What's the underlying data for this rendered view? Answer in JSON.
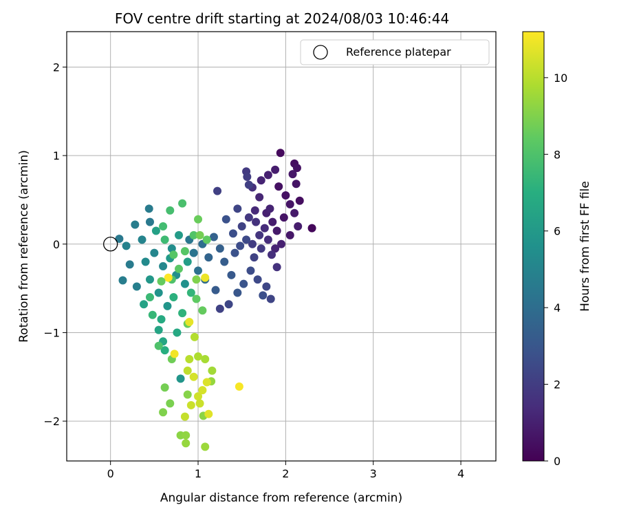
{
  "chart_data": {
    "type": "scatter",
    "title": "FOV centre drift starting at 2024/08/03 10:46:44",
    "xlabel": "Angular distance from reference (arcmin)",
    "ylabel": "Rotation from reference (arcmin)",
    "xlim": [
      -0.5,
      4.4
    ],
    "ylim": [
      -2.45,
      2.4
    ],
    "xticks": [
      0,
      1,
      2,
      3,
      4
    ],
    "yticks": [
      -2,
      -1,
      0,
      1,
      2
    ],
    "xtick_labels": [
      "0",
      "1",
      "2",
      "3",
      "4"
    ],
    "ytick_labels": [
      "−2",
      "−1",
      "0",
      "1",
      "2"
    ],
    "grid": true,
    "legend": {
      "position": "top-right",
      "entries": [
        {
          "label": "Reference platepar",
          "marker": "open-circle"
        }
      ]
    },
    "reference_point": {
      "x": 0,
      "y": 0
    },
    "colorbar": {
      "label": "Hours from first FF file",
      "range": [
        0,
        11.2
      ],
      "ticks": [
        0,
        2,
        4,
        6,
        8,
        10
      ],
      "tick_labels": [
        "0",
        "2",
        "4",
        "6",
        "8",
        "10"
      ],
      "colormap": "viridis"
    },
    "points": [
      {
        "x": 2.3,
        "y": 0.18,
        "c": 0.2
      },
      {
        "x": 1.94,
        "y": 1.03,
        "c": 0.3
      },
      {
        "x": 2.1,
        "y": 0.91,
        "c": 0.4
      },
      {
        "x": 2.13,
        "y": 0.86,
        "c": 0.5
      },
      {
        "x": 2.16,
        "y": 0.49,
        "c": 0.4
      },
      {
        "x": 2.12,
        "y": 0.68,
        "c": 0.6
      },
      {
        "x": 2.08,
        "y": 0.79,
        "c": 0.7
      },
      {
        "x": 2.0,
        "y": 0.55,
        "c": 0.5
      },
      {
        "x": 2.05,
        "y": 0.45,
        "c": 0.6
      },
      {
        "x": 2.1,
        "y": 0.35,
        "c": 0.8
      },
      {
        "x": 2.14,
        "y": 0.2,
        "c": 0.9
      },
      {
        "x": 2.05,
        "y": 0.1,
        "c": 0.7
      },
      {
        "x": 1.98,
        "y": 0.3,
        "c": 0.6
      },
      {
        "x": 1.9,
        "y": 0.15,
        "c": 0.8
      },
      {
        "x": 1.95,
        "y": 0.0,
        "c": 1.0
      },
      {
        "x": 1.88,
        "y": -0.05,
        "c": 1.1
      },
      {
        "x": 1.92,
        "y": 0.65,
        "c": 0.5
      },
      {
        "x": 1.88,
        "y": 0.84,
        "c": 0.9
      },
      {
        "x": 1.8,
        "y": 0.78,
        "c": 1.0
      },
      {
        "x": 1.72,
        "y": 0.72,
        "c": 1.1
      },
      {
        "x": 1.7,
        "y": 0.53,
        "c": 1.2
      },
      {
        "x": 1.62,
        "y": 0.64,
        "c": 1.5
      },
      {
        "x": 1.78,
        "y": 0.35,
        "c": 1.0
      },
      {
        "x": 1.85,
        "y": 0.25,
        "c": 0.9
      },
      {
        "x": 1.82,
        "y": 0.4,
        "c": 1.1
      },
      {
        "x": 1.65,
        "y": 0.38,
        "c": 1.3
      },
      {
        "x": 1.76,
        "y": 0.18,
        "c": 1.4
      },
      {
        "x": 1.9,
        "y": -0.26,
        "c": 1.6
      },
      {
        "x": 1.84,
        "y": -0.12,
        "c": 1.5
      },
      {
        "x": 1.8,
        "y": 0.05,
        "c": 1.4
      },
      {
        "x": 1.7,
        "y": 0.1,
        "c": 1.7
      },
      {
        "x": 1.66,
        "y": 0.25,
        "c": 1.6
      },
      {
        "x": 1.58,
        "y": 0.3,
        "c": 1.8
      },
      {
        "x": 1.55,
        "y": 0.82,
        "c": 1.9
      },
      {
        "x": 1.56,
        "y": 0.76,
        "c": 2.0
      },
      {
        "x": 1.58,
        "y": 0.67,
        "c": 2.1
      },
      {
        "x": 1.22,
        "y": 0.6,
        "c": 2.1
      },
      {
        "x": 1.45,
        "y": 0.4,
        "c": 2.3
      },
      {
        "x": 1.5,
        "y": 0.2,
        "c": 2.2
      },
      {
        "x": 1.62,
        "y": 0.0,
        "c": 2.0
      },
      {
        "x": 1.72,
        "y": -0.05,
        "c": 1.9
      },
      {
        "x": 1.64,
        "y": -0.15,
        "c": 2.2
      },
      {
        "x": 1.55,
        "y": 0.05,
        "c": 2.5
      },
      {
        "x": 1.48,
        "y": -0.02,
        "c": 2.6
      },
      {
        "x": 1.4,
        "y": 0.12,
        "c": 2.7
      },
      {
        "x": 1.32,
        "y": 0.28,
        "c": 2.8
      },
      {
        "x": 1.42,
        "y": -0.1,
        "c": 2.8
      },
      {
        "x": 1.6,
        "y": -0.3,
        "c": 2.6
      },
      {
        "x": 1.68,
        "y": -0.4,
        "c": 2.5
      },
      {
        "x": 1.78,
        "y": -0.48,
        "c": 2.4
      },
      {
        "x": 1.74,
        "y": -0.58,
        "c": 2.7
      },
      {
        "x": 1.83,
        "y": -0.62,
        "c": 2.3
      },
      {
        "x": 1.52,
        "y": -0.45,
        "c": 2.9
      },
      {
        "x": 1.45,
        "y": -0.55,
        "c": 3.0
      },
      {
        "x": 1.35,
        "y": -0.68,
        "c": 2.4
      },
      {
        "x": 1.25,
        "y": -0.73,
        "c": 2.2
      },
      {
        "x": 1.38,
        "y": -0.35,
        "c": 3.1
      },
      {
        "x": 1.3,
        "y": -0.2,
        "c": 3.3
      },
      {
        "x": 1.25,
        "y": -0.05,
        "c": 3.4
      },
      {
        "x": 1.18,
        "y": 0.08,
        "c": 3.5
      },
      {
        "x": 1.12,
        "y": -0.15,
        "c": 3.6
      },
      {
        "x": 1.2,
        "y": -0.52,
        "c": 3.2
      },
      {
        "x": 1.08,
        "y": -0.4,
        "c": 3.9
      },
      {
        "x": 1.0,
        "y": -0.3,
        "c": 4.1
      },
      {
        "x": 0.95,
        "y": -0.1,
        "c": 4.3
      },
      {
        "x": 0.9,
        "y": 0.05,
        "c": 4.4
      },
      {
        "x": 1.05,
        "y": 0.0,
        "c": 4.0
      },
      {
        "x": 0.22,
        "y": -0.23,
        "c": 4.6
      },
      {
        "x": 0.1,
        "y": 0.06,
        "c": 4.5
      },
      {
        "x": 0.14,
        "y": -0.41,
        "c": 4.7
      },
      {
        "x": 0.3,
        "y": -0.48,
        "c": 4.8
      },
      {
        "x": 0.44,
        "y": 0.4,
        "c": 4.6
      },
      {
        "x": 0.45,
        "y": 0.25,
        "c": 4.5
      },
      {
        "x": 0.28,
        "y": 0.22,
        "c": 4.7
      },
      {
        "x": 0.18,
        "y": -0.02,
        "c": 4.9
      },
      {
        "x": 0.36,
        "y": 0.05,
        "c": 5.0
      },
      {
        "x": 0.5,
        "y": -0.1,
        "c": 5.1
      },
      {
        "x": 0.6,
        "y": -0.25,
        "c": 5.2
      },
      {
        "x": 0.4,
        "y": -0.2,
        "c": 5.3
      },
      {
        "x": 0.7,
        "y": -0.05,
        "c": 5.4
      },
      {
        "x": 0.75,
        "y": -0.35,
        "c": 5.5
      },
      {
        "x": 0.85,
        "y": -0.45,
        "c": 5.6
      },
      {
        "x": 0.55,
        "y": -0.55,
        "c": 5.7
      },
      {
        "x": 0.65,
        "y": -0.7,
        "c": 5.8
      },
      {
        "x": 0.45,
        "y": -0.4,
        "c": 5.9
      },
      {
        "x": 0.68,
        "y": -0.16,
        "c": 6.0
      },
      {
        "x": 0.78,
        "y": 0.1,
        "c": 6.1
      },
      {
        "x": 0.88,
        "y": -0.2,
        "c": 6.2
      },
      {
        "x": 0.52,
        "y": 0.15,
        "c": 6.3
      },
      {
        "x": 0.38,
        "y": -0.68,
        "c": 6.4
      },
      {
        "x": 0.55,
        "y": -0.97,
        "c": 6.5
      },
      {
        "x": 0.6,
        "y": -1.1,
        "c": 6.6
      },
      {
        "x": 0.76,
        "y": -1.0,
        "c": 6.7
      },
      {
        "x": 0.58,
        "y": -0.85,
        "c": 6.8
      },
      {
        "x": 0.8,
        "y": -1.52,
        "c": 5.8
      },
      {
        "x": 0.62,
        "y": -1.2,
        "c": 7.0
      },
      {
        "x": 0.72,
        "y": -0.6,
        "c": 7.1
      },
      {
        "x": 0.82,
        "y": -0.78,
        "c": 7.2
      },
      {
        "x": 0.92,
        "y": -0.55,
        "c": 7.3
      },
      {
        "x": 0.48,
        "y": -0.8,
        "c": 7.4
      },
      {
        "x": 0.45,
        "y": -0.6,
        "c": 7.5
      },
      {
        "x": 0.62,
        "y": 0.05,
        "c": 7.6
      },
      {
        "x": 0.6,
        "y": 0.2,
        "c": 7.7
      },
      {
        "x": 0.68,
        "y": 0.38,
        "c": 7.8
      },
      {
        "x": 0.82,
        "y": 0.46,
        "c": 7.9
      },
      {
        "x": 0.7,
        "y": -0.4,
        "c": 8.0
      },
      {
        "x": 0.95,
        "y": 0.1,
        "c": 8.1
      },
      {
        "x": 0.85,
        "y": -0.08,
        "c": 8.2
      },
      {
        "x": 0.78,
        "y": -0.28,
        "c": 8.3
      },
      {
        "x": 0.98,
        "y": -0.62,
        "c": 8.4
      },
      {
        "x": 1.05,
        "y": -0.75,
        "c": 8.5
      },
      {
        "x": 0.88,
        "y": -0.9,
        "c": 8.6
      },
      {
        "x": 0.7,
        "y": -1.3,
        "c": 8.7
      },
      {
        "x": 0.62,
        "y": -1.62,
        "c": 8.8
      },
      {
        "x": 0.68,
        "y": -1.8,
        "c": 8.9
      },
      {
        "x": 0.6,
        "y": -1.9,
        "c": 9.0
      },
      {
        "x": 0.88,
        "y": -1.7,
        "c": 9.1
      },
      {
        "x": 0.8,
        "y": -2.16,
        "c": 9.2
      },
      {
        "x": 0.86,
        "y": -2.16,
        "c": 9.3
      },
      {
        "x": 0.86,
        "y": -2.25,
        "c": 9.4
      },
      {
        "x": 1.08,
        "y": -2.29,
        "c": 9.5
      },
      {
        "x": 1.06,
        "y": -1.94,
        "c": 9.2
      },
      {
        "x": 1.15,
        "y": -1.55,
        "c": 9.4
      },
      {
        "x": 1.16,
        "y": -1.43,
        "c": 9.6
      },
      {
        "x": 1.08,
        "y": -1.3,
        "c": 9.7
      },
      {
        "x": 1.0,
        "y": -1.27,
        "c": 9.8
      },
      {
        "x": 0.96,
        "y": -1.05,
        "c": 9.9
      },
      {
        "x": 0.9,
        "y": -1.3,
        "c": 10.0
      },
      {
        "x": 0.88,
        "y": -1.43,
        "c": 10.1
      },
      {
        "x": 0.85,
        "y": -1.95,
        "c": 10.2
      },
      {
        "x": 0.92,
        "y": -1.82,
        "c": 10.3
      },
      {
        "x": 1.0,
        "y": -1.72,
        "c": 10.4
      },
      {
        "x": 1.05,
        "y": -1.65,
        "c": 10.5
      },
      {
        "x": 1.1,
        "y": -1.56,
        "c": 10.6
      },
      {
        "x": 1.12,
        "y": -1.92,
        "c": 10.7
      },
      {
        "x": 1.47,
        "y": -1.61,
        "c": 11.1
      },
      {
        "x": 0.66,
        "y": -0.38,
        "c": 11.2
      },
      {
        "x": 1.08,
        "y": -0.38,
        "c": 10.9
      },
      {
        "x": 0.9,
        "y": -0.88,
        "c": 10.8
      },
      {
        "x": 0.73,
        "y": -1.24,
        "c": 11.0
      },
      {
        "x": 0.95,
        "y": -1.5,
        "c": 10.5
      },
      {
        "x": 1.02,
        "y": -1.8,
        "c": 10.3
      },
      {
        "x": 1.0,
        "y": 0.28,
        "c": 8.6
      },
      {
        "x": 1.02,
        "y": 0.1,
        "c": 8.8
      },
      {
        "x": 1.1,
        "y": 0.05,
        "c": 8.4
      },
      {
        "x": 0.98,
        "y": -0.4,
        "c": 9.0
      },
      {
        "x": 0.72,
        "y": -0.12,
        "c": 8.2
      },
      {
        "x": 0.58,
        "y": -0.42,
        "c": 8.5
      },
      {
        "x": 0.55,
        "y": -1.15,
        "c": 8.0
      }
    ]
  }
}
